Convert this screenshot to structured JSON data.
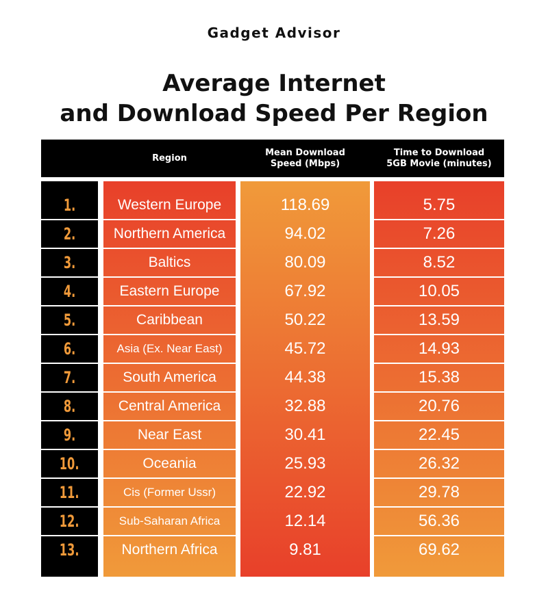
{
  "brand": "Gadget Advisor",
  "title_line1": "Average Internet",
  "title_line2": "and Download Speed Per Region",
  "colors": {
    "red": "#e8402a",
    "orange": "#f09a3a",
    "header": "#000000"
  },
  "chart_data": {
    "type": "table",
    "columns": [
      "Region",
      "Mean Download Speed (Mbps)",
      "Time to Download 5GB Movie (minutes)"
    ],
    "header": {
      "region": "Region",
      "speed_1": "Mean Download",
      "speed_2": "Speed (Mbps)",
      "time_1": "Time to Download",
      "time_2": "5GB Movie (minutes)"
    },
    "rows": [
      {
        "rank": "1.",
        "region": "Western Europe",
        "speed": "118.69",
        "time": "5.75"
      },
      {
        "rank": "2.",
        "region": "Northern America",
        "speed": "94.02",
        "time": "7.26"
      },
      {
        "rank": "3.",
        "region": "Baltics",
        "speed": "80.09",
        "time": "8.52"
      },
      {
        "rank": "4.",
        "region": "Eastern Europe",
        "speed": "67.92",
        "time": "10.05"
      },
      {
        "rank": "5.",
        "region": "Caribbean",
        "speed": "50.22",
        "time": "13.59"
      },
      {
        "rank": "6.",
        "region": "Asia (Ex. Near East)",
        "speed": "45.72",
        "time": "14.93"
      },
      {
        "rank": "7.",
        "region": "South America",
        "speed": "44.38",
        "time": "15.38"
      },
      {
        "rank": "8.",
        "region": "Central America",
        "speed": "32.88",
        "time": "20.76"
      },
      {
        "rank": "9.",
        "region": "Near East",
        "speed": "30.41",
        "time": "22.45"
      },
      {
        "rank": "10.",
        "region": "Oceania",
        "speed": "25.93",
        "time": "26.32"
      },
      {
        "rank": "11.",
        "region": "Cis (Former Ussr)",
        "speed": "22.92",
        "time": "29.78"
      },
      {
        "rank": "12.",
        "region": "Sub-Saharan Africa",
        "speed": "12.14",
        "time": "56.36"
      },
      {
        "rank": "13.",
        "region": "Northern Africa",
        "speed": "9.81",
        "time": "69.62"
      }
    ]
  }
}
